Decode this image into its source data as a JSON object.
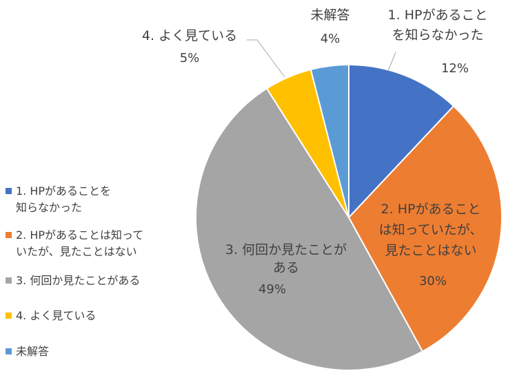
{
  "chart_data": {
    "type": "pie",
    "title": "",
    "slices": [
      {
        "name": "1. HPがあることを知らなかった",
        "value": 12,
        "label": "1. HPがあること\nを知らなかった",
        "pct": "12%",
        "color": "#4472C4"
      },
      {
        "name": "2. HPがあることは知っていたが、見たことはない",
        "value": 30,
        "label": "2. HPがあること\nは知っていたが、\n見たことはない",
        "pct": "30%",
        "color": "#ED7D31"
      },
      {
        "name": "3. 何回か見たことがある",
        "value": 49,
        "label": "3. 何回か見たことが\nある",
        "pct": "49%",
        "color": "#A5A5A5"
      },
      {
        "name": "4. よく見ている",
        "value": 5,
        "label": "4. よく見ている",
        "pct": "5%",
        "color": "#FFC000"
      },
      {
        "name": "未解答",
        "value": 4,
        "label": "未解答",
        "pct": "4%",
        "color": "#5B9BD5"
      }
    ],
    "legend": {
      "position": "left",
      "items": [
        "1. HPがあることを\n知らなかった",
        "2. HPがあることは知って\nいたが、見たことはない",
        "3. 何回か見たことがある",
        "4. よく見ている",
        "未解答"
      ]
    }
  }
}
